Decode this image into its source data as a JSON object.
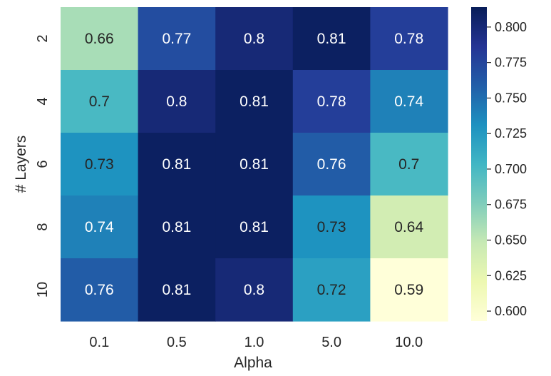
{
  "chart_data": {
    "type": "heatmap",
    "title": "",
    "xlabel": "Alpha",
    "ylabel": "# Layers",
    "x_categories": [
      "0.1",
      "0.5",
      "1.0",
      "5.0",
      "10.0"
    ],
    "y_categories": [
      "2",
      "4",
      "6",
      "8",
      "10"
    ],
    "values": [
      [
        0.66,
        0.77,
        0.8,
        0.81,
        0.78
      ],
      [
        0.7,
        0.8,
        0.81,
        0.78,
        0.74
      ],
      [
        0.73,
        0.81,
        0.81,
        0.76,
        0.7
      ],
      [
        0.74,
        0.81,
        0.81,
        0.73,
        0.64
      ],
      [
        0.76,
        0.81,
        0.8,
        0.72,
        0.59
      ]
    ],
    "cell_labels": [
      [
        "0.66",
        "0.77",
        "0.8",
        "0.81",
        "0.78"
      ],
      [
        "0.7",
        "0.8",
        "0.81",
        "0.78",
        "0.74"
      ],
      [
        "0.73",
        "0.81",
        "0.81",
        "0.76",
        "0.7"
      ],
      [
        "0.74",
        "0.81",
        "0.81",
        "0.73",
        "0.64"
      ],
      [
        "0.76",
        "0.81",
        "0.8",
        "0.72",
        "0.59"
      ]
    ],
    "colormap": "YlGnBu",
    "colorbar": {
      "vmin": 0.593,
      "vmax": 0.814,
      "ticks": [
        0.6,
        0.625,
        0.65,
        0.675,
        0.7,
        0.725,
        0.75,
        0.775,
        0.8
      ],
      "tick_labels": [
        "0.600",
        "0.625",
        "0.650",
        "0.675",
        "0.700",
        "0.725",
        "0.750",
        "0.775",
        "0.800"
      ]
    },
    "colormap_stops": [
      "#ffffd9",
      "#edf8b1",
      "#c7e9b4",
      "#7fcdbb",
      "#41b6c4",
      "#1d91c0",
      "#225ea8",
      "#253494",
      "#081d58"
    ]
  }
}
